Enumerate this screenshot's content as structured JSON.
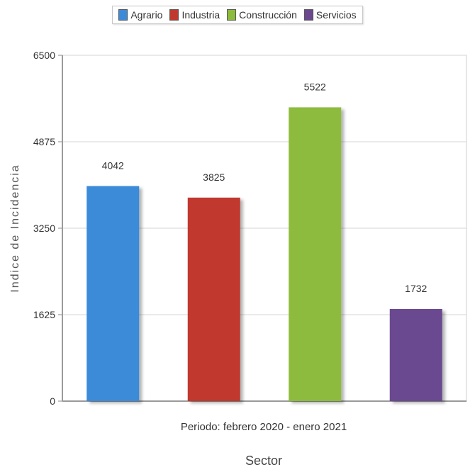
{
  "chart_data": {
    "type": "bar",
    "categories": [
      "Periodo: febrero 2020 - enero 2021"
    ],
    "series": [
      {
        "name": "Agrario",
        "values": [
          4042
        ],
        "color": "#3b8bd9"
      },
      {
        "name": "Industria",
        "values": [
          3825
        ],
        "color": "#c0392f"
      },
      {
        "name": "Construcción",
        "values": [
          5522
        ],
        "color": "#8dbb3c"
      },
      {
        "name": "Servicios",
        "values": [
          1732
        ],
        "color": "#6b4890"
      }
    ],
    "xlabel": "Sector",
    "ylabel": "Indice de Incidencia",
    "ylim": [
      0,
      6500
    ],
    "yticks": [
      0,
      1625,
      3250,
      4875,
      6500
    ],
    "grid": true,
    "legend_position": "top-center"
  }
}
